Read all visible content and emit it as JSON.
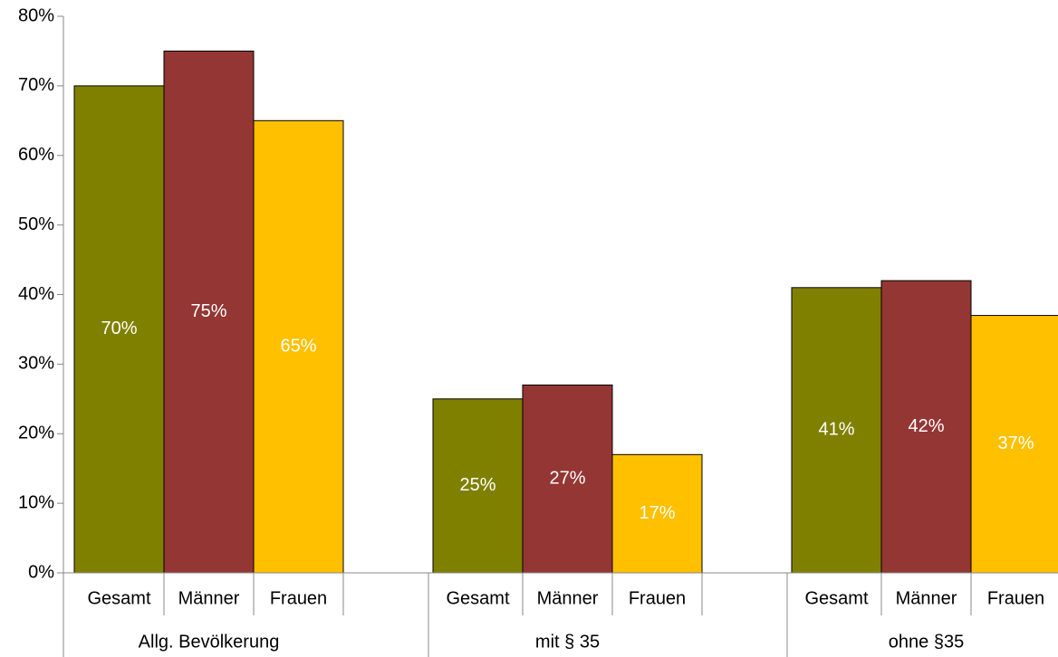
{
  "chart_data": {
    "type": "bar",
    "categories": [
      "Allg. Bevölkerung",
      "mit § 35",
      "ohne §35"
    ],
    "series": [
      {
        "name": "Gesamt",
        "color": "#808000",
        "values": [
          70,
          25,
          41
        ],
        "value_labels": [
          "70%",
          "25%",
          "41%"
        ]
      },
      {
        "name": "Männer",
        "color": "#943634",
        "values": [
          75,
          27,
          42
        ],
        "value_labels": [
          "75%",
          "27%",
          "42%"
        ]
      },
      {
        "name": "Frauen",
        "color": "#FFC000",
        "values": [
          65,
          17,
          37
        ],
        "value_labels": [
          "65%",
          "17%",
          "37%"
        ]
      }
    ],
    "ylim": [
      0,
      80
    ],
    "yticks": [
      {
        "value": 0,
        "label": "0%"
      },
      {
        "value": 10,
        "label": "10%"
      },
      {
        "value": 20,
        "label": "20%"
      },
      {
        "value": 30,
        "label": "30%"
      },
      {
        "value": 40,
        "label": "40%"
      },
      {
        "value": 50,
        "label": "50%"
      },
      {
        "value": 60,
        "label": "60%"
      },
      {
        "value": 70,
        "label": "70%"
      },
      {
        "value": 80,
        "label": "80%"
      }
    ],
    "grid": false
  }
}
